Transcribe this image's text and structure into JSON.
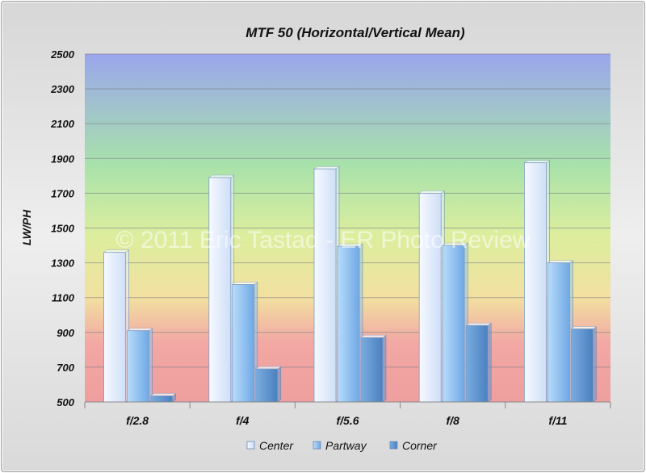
{
  "chart_data": {
    "type": "bar",
    "title": "MTF 50 (Horizontal/Vertical Mean)",
    "xlabel": "",
    "ylabel": "LW/PH",
    "categories": [
      "f/2.8",
      "f/4",
      "f/5.6",
      "f/8",
      "f/11"
    ],
    "series": [
      {
        "name": "Center",
        "values": [
          1360,
          1790,
          1840,
          1700,
          1875
        ],
        "color": "#e6efff"
      },
      {
        "name": "Partway",
        "values": [
          910,
          1175,
          1395,
          1400,
          1300
        ],
        "color": "#92c3f0"
      },
      {
        "name": "Corner",
        "values": [
          535,
          690,
          870,
          940,
          920
        ],
        "color": "#5e94cf"
      }
    ],
    "ylim": [
      500,
      2500
    ],
    "yticks": [
      500,
      700,
      900,
      1100,
      1300,
      1500,
      1700,
      1900,
      2100,
      2300,
      2500
    ],
    "grid": true,
    "legend_position": "bottom",
    "background_gradient": [
      "#9aa6ec",
      "#a6e2a4",
      "#f4f0a8",
      "#f0a8a8"
    ]
  },
  "watermark": "© 2011 Eric Tastad - ER Photo Review"
}
